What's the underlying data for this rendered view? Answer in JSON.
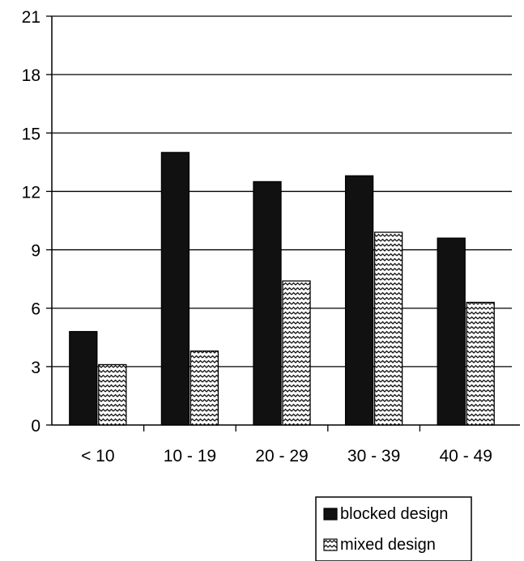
{
  "chart_data": {
    "type": "bar",
    "title": "",
    "xlabel": "",
    "ylabel": "",
    "categories": [
      "< 10",
      "10 - 19",
      "20 - 29",
      "30 - 39",
      "40 - 49"
    ],
    "series": [
      {
        "name": "blocked design",
        "values": [
          4.8,
          14.0,
          12.5,
          12.8,
          9.6
        ],
        "color": "#111111"
      },
      {
        "name": "mixed design",
        "values": [
          3.1,
          3.8,
          7.4,
          9.9,
          6.3
        ],
        "color": "#ffffff"
      }
    ],
    "ylim": [
      0,
      21
    ],
    "yticks": [
      0,
      3,
      6,
      9,
      12,
      15,
      18,
      21
    ],
    "grid": true,
    "legend_position": "bottom-right"
  }
}
